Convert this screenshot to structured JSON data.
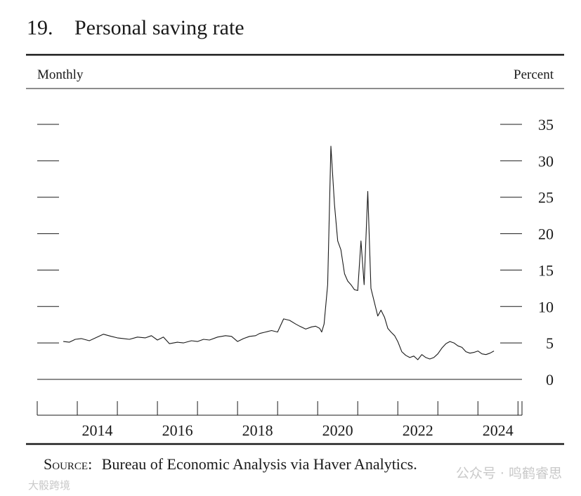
{
  "figure": {
    "number": "19.",
    "title": "Personal saving rate",
    "left_label": "Monthly",
    "right_label": "Percent",
    "source_label": "Source:",
    "source_text": "Bureau of Economic Analysis via Haver Analytics."
  },
  "watermarks": {
    "right": "公众号 · 鸣鹤睿思",
    "left": "大骰跨境"
  },
  "colors": {
    "line": "#1a1a1a",
    "rule": "#1a1a1a",
    "watermark": "#c9c9c9"
  },
  "chart_data": {
    "type": "line",
    "title": "Personal saving rate",
    "xlabel": "",
    "ylabel": "Percent",
    "frequency": "Monthly",
    "xlim": [
      2013.0,
      2025.1
    ],
    "ylim": [
      0,
      35
    ],
    "yticks": [
      0,
      5,
      10,
      15,
      20,
      25,
      30,
      35
    ],
    "xticks": [
      2014,
      2016,
      2018,
      2020,
      2022,
      2024
    ],
    "grid": false,
    "series": [
      {
        "name": "Personal saving rate",
        "x": [
          2013.65,
          2013.8,
          2013.95,
          2014.1,
          2014.3,
          2014.5,
          2014.65,
          2014.85,
          2015.0,
          2015.15,
          2015.3,
          2015.5,
          2015.7,
          2015.85,
          2016.0,
          2016.15,
          2016.3,
          2016.5,
          2016.65,
          2016.85,
          2017.0,
          2017.15,
          2017.3,
          2017.5,
          2017.7,
          2017.85,
          2018.0,
          2018.15,
          2018.3,
          2018.45,
          2018.55,
          2018.7,
          2018.85,
          2019.0,
          2019.15,
          2019.3,
          2019.45,
          2019.55,
          2019.7,
          2019.85,
          2019.95,
          2020.05,
          2020.1,
          2020.16,
          2020.25,
          2020.33,
          2020.42,
          2020.5,
          2020.58,
          2020.67,
          2020.75,
          2020.83,
          2020.92,
          2021.0,
          2021.08,
          2021.16,
          2021.25,
          2021.33,
          2021.42,
          2021.5,
          2021.58,
          2021.67,
          2021.75,
          2021.83,
          2021.92,
          2022.0,
          2022.1,
          2022.2,
          2022.3,
          2022.4,
          2022.5,
          2022.6,
          2022.7,
          2022.8,
          2022.9,
          2023.0,
          2023.1,
          2023.2,
          2023.3,
          2023.4,
          2023.5,
          2023.6,
          2023.7,
          2023.8,
          2023.9,
          2024.0,
          2024.1,
          2024.2,
          2024.3,
          2024.4
        ],
        "values": [
          5.2,
          5.1,
          5.5,
          5.6,
          5.3,
          5.8,
          6.2,
          5.9,
          5.7,
          5.6,
          5.5,
          5.8,
          5.7,
          6.0,
          5.4,
          5.8,
          4.9,
          5.1,
          5.0,
          5.3,
          5.2,
          5.5,
          5.4,
          5.8,
          6.0,
          5.9,
          5.2,
          5.6,
          5.9,
          6.0,
          6.3,
          6.5,
          6.7,
          6.5,
          8.3,
          8.1,
          7.6,
          7.3,
          6.9,
          7.2,
          7.3,
          7.0,
          6.5,
          7.6,
          13.0,
          32.0,
          24.0,
          19.0,
          17.8,
          14.5,
          13.5,
          13.0,
          12.3,
          12.2,
          19.0,
          13.0,
          25.8,
          12.5,
          10.5,
          8.7,
          9.5,
          8.5,
          7.0,
          6.5,
          6.0,
          5.2,
          3.8,
          3.3,
          3.0,
          3.2,
          2.7,
          3.4,
          3.0,
          2.8,
          3.0,
          3.5,
          4.3,
          4.9,
          5.2,
          5.0,
          4.6,
          4.4,
          3.8,
          3.6,
          3.7,
          3.9,
          3.5,
          3.4,
          3.6,
          3.9
        ]
      }
    ]
  }
}
